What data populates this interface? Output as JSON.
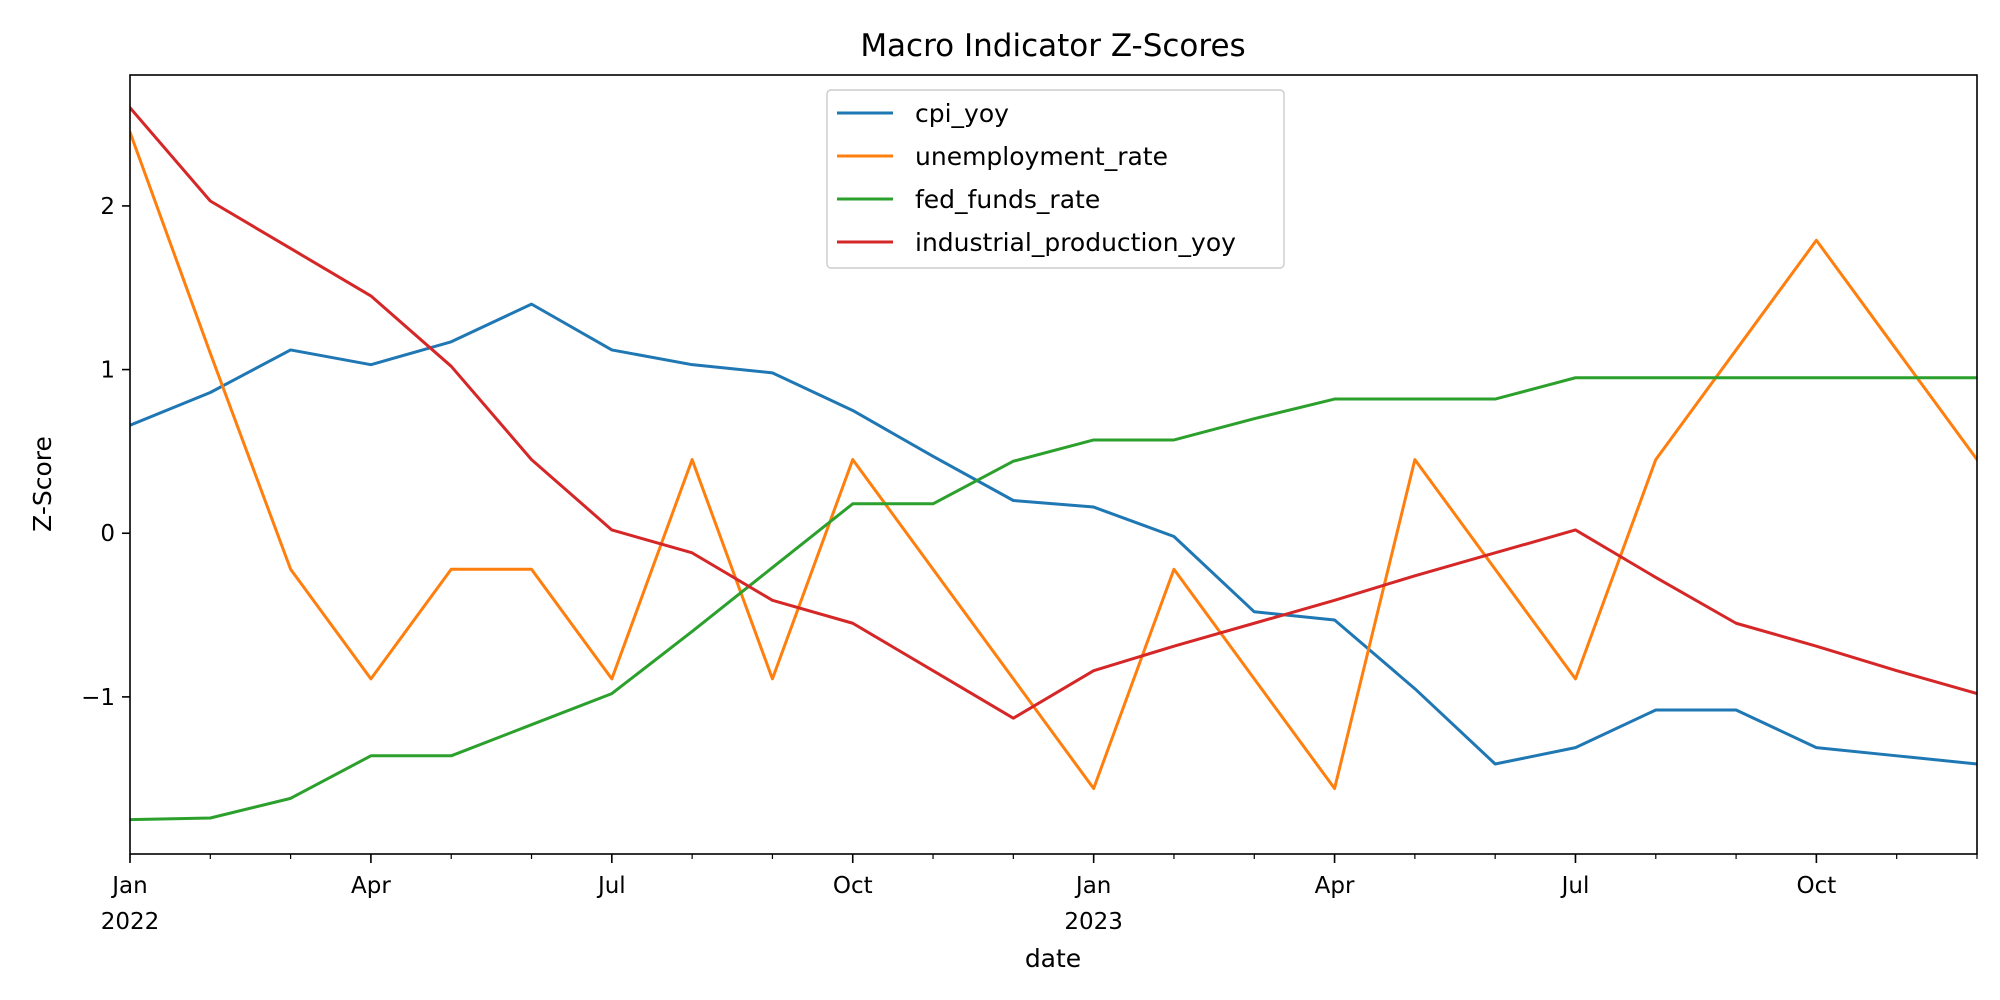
{
  "chart_data": {
    "type": "line",
    "title": "Macro Indicator Z-Scores",
    "xlabel": "date",
    "ylabel": "Z-Score",
    "x": [
      "2022-01",
      "2022-02",
      "2022-03",
      "2022-04",
      "2022-05",
      "2022-06",
      "2022-07",
      "2022-08",
      "2022-09",
      "2022-10",
      "2022-11",
      "2022-12",
      "2023-01",
      "2023-02",
      "2023-03",
      "2023-04",
      "2023-05",
      "2023-06",
      "2023-07",
      "2023-08",
      "2023-09",
      "2023-10",
      "2023-11",
      "2023-12"
    ],
    "xlim": [
      "2022-01",
      "2023-12"
    ],
    "ylim": [
      -1.96,
      2.8
    ],
    "yticks": [
      -1,
      0,
      1,
      2
    ],
    "ytick_labels": [
      "−1",
      "0",
      "1",
      "2"
    ],
    "xticks_major": [
      {
        "x": "2022-01",
        "label": "Jan",
        "year": "2022"
      },
      {
        "x": "2022-04",
        "label": "Apr",
        "year": ""
      },
      {
        "x": "2022-07",
        "label": "Jul",
        "year": ""
      },
      {
        "x": "2022-10",
        "label": "Oct",
        "year": ""
      },
      {
        "x": "2023-01",
        "label": "Jan",
        "year": "2023"
      },
      {
        "x": "2023-04",
        "label": "Apr",
        "year": ""
      },
      {
        "x": "2023-07",
        "label": "Jul",
        "year": ""
      },
      {
        "x": "2023-10",
        "label": "Oct",
        "year": ""
      }
    ],
    "grid": false,
    "legend": "upper-center",
    "series": [
      {
        "name": "cpi_yoy",
        "color": "#1f77b4",
        "values": [
          0.66,
          0.86,
          1.12,
          1.03,
          1.17,
          1.4,
          1.12,
          1.03,
          0.98,
          0.75,
          0.47,
          0.2,
          0.16,
          -0.02,
          -0.48,
          -0.53,
          -0.95,
          -1.41,
          -1.31,
          -1.08,
          -1.08,
          -1.31,
          -1.36,
          -1.41
        ]
      },
      {
        "name": "unemployment_rate",
        "color": "#ff7f0e",
        "values": [
          2.45,
          1.1,
          -0.22,
          -0.89,
          -0.22,
          -0.22,
          -0.89,
          0.45,
          -0.89,
          0.45,
          -0.22,
          -0.89,
          -1.56,
          -0.22,
          -0.89,
          -1.56,
          0.45,
          -0.22,
          -0.89,
          0.45,
          1.12,
          1.79,
          1.12,
          0.45
        ]
      },
      {
        "name": "fed_funds_rate",
        "color": "#2ca02c",
        "values": [
          -1.75,
          -1.74,
          -1.62,
          -1.36,
          -1.36,
          -1.17,
          -0.98,
          -0.6,
          -0.21,
          0.18,
          0.18,
          0.44,
          0.57,
          0.57,
          0.7,
          0.82,
          0.82,
          0.82,
          0.95,
          0.95,
          0.95,
          0.95,
          0.95,
          0.95
        ]
      },
      {
        "name": "industrial_production_yoy",
        "color": "#d62728",
        "values": [
          2.6,
          2.03,
          1.74,
          1.45,
          1.02,
          0.45,
          0.02,
          -0.12,
          -0.41,
          -0.55,
          -0.84,
          -1.13,
          -0.84,
          -0.69,
          -0.55,
          -0.41,
          -0.26,
          -0.12,
          0.02,
          -0.27,
          -0.55,
          -0.69,
          -0.84,
          -0.98
        ]
      }
    ]
  }
}
